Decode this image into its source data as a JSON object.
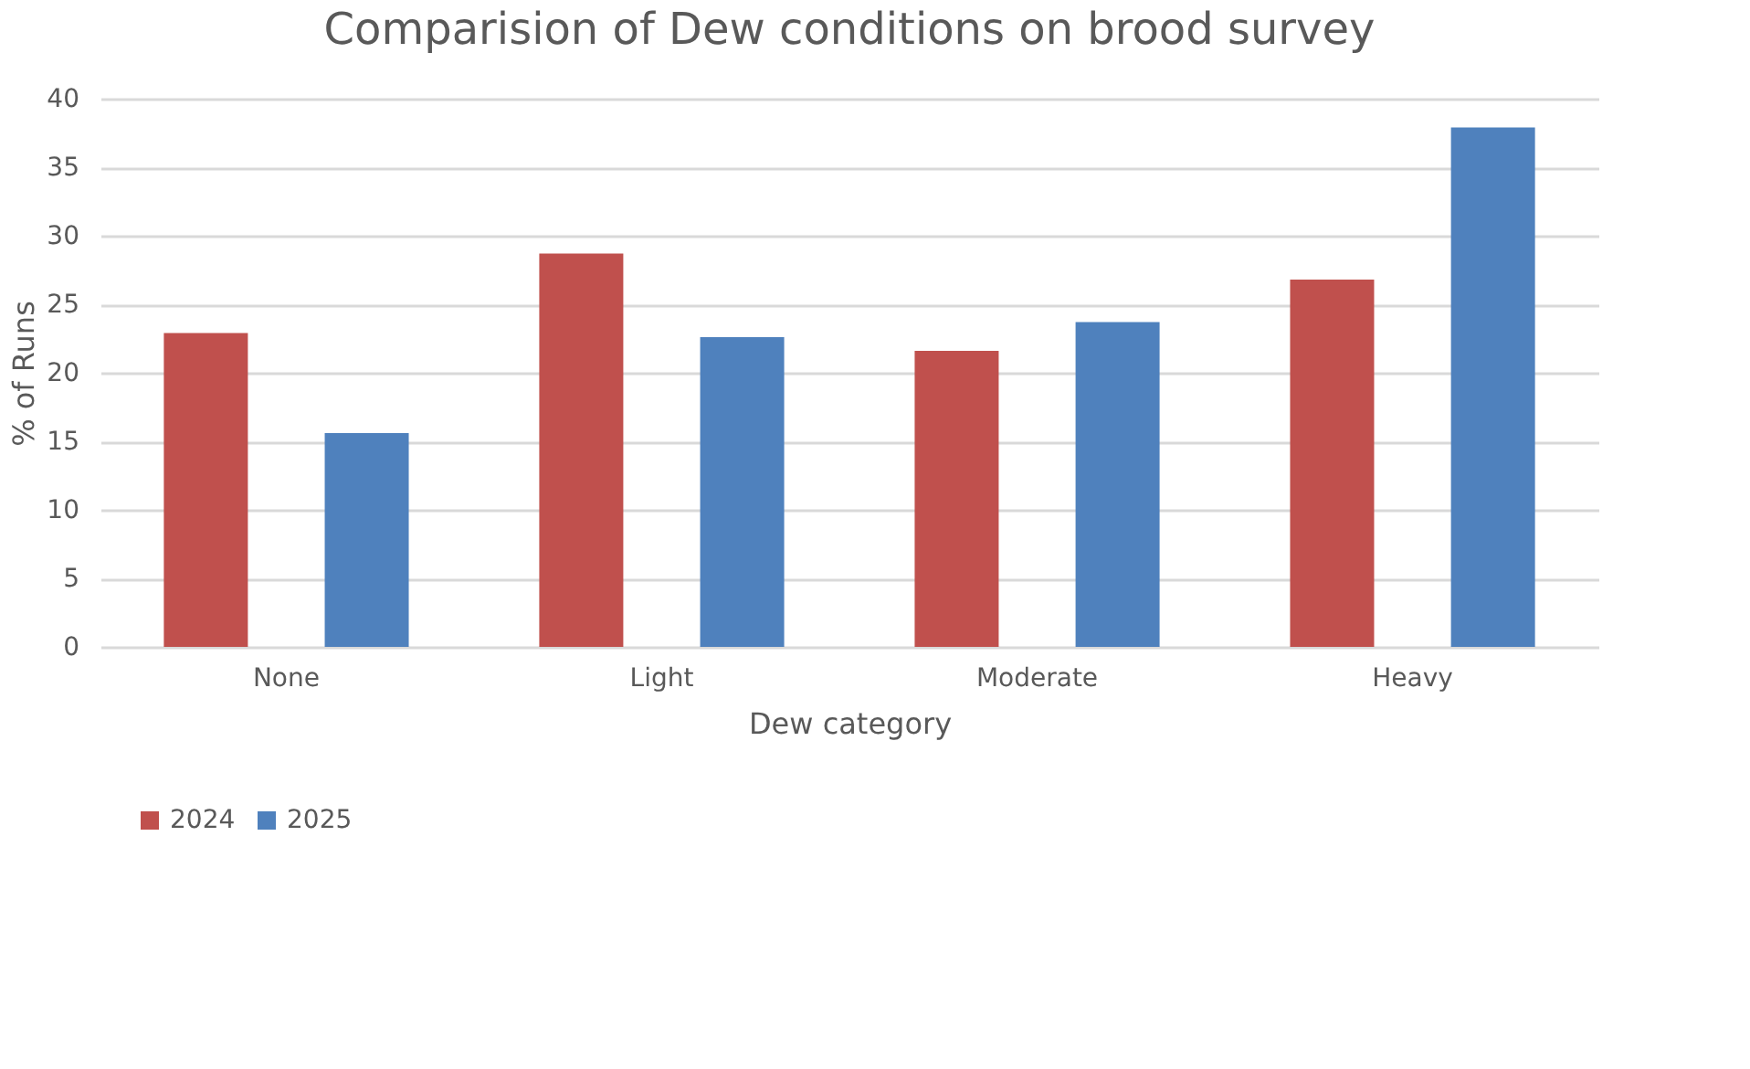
{
  "chart_data": {
    "type": "bar",
    "title": "Comparision of Dew conditions on brood survey",
    "xlabel": "Dew category",
    "ylabel": "% of Runs",
    "categories": [
      "None",
      "Light",
      "Moderate",
      "Heavy"
    ],
    "series": [
      {
        "name": "2024",
        "color": "#c0504d",
        "values": [
          22.9,
          28.7,
          21.6,
          26.8
        ]
      },
      {
        "name": "2025",
        "color": "#4f81bd",
        "values": [
          15.6,
          22.6,
          23.7,
          37.9
        ]
      }
    ],
    "ylim": [
      0,
      40
    ],
    "yticks": [
      0,
      5,
      10,
      15,
      20,
      25,
      30,
      35,
      40
    ],
    "grid": "y",
    "legend": "bottom"
  }
}
